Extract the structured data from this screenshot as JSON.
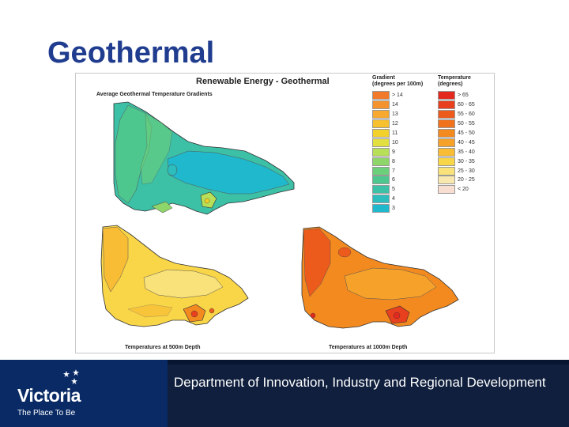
{
  "slide": {
    "title": "Geothermal"
  },
  "figure": {
    "title": "Renewable Energy - Geothermal",
    "map_gradient_label": "Average Geothermal Temperature Gradients",
    "map_500_label": "Temperatures at 500m Depth",
    "map_1000_label": "Temperatures at 1000m Depth",
    "gradient_legend": {
      "title": "Gradient",
      "unit": "(degrees per 100m)",
      "items": [
        {
          "label": "> 14",
          "color": "#f07a2a"
        },
        {
          "label": "14",
          "color": "#f4922e"
        },
        {
          "label": "13",
          "color": "#f6a830"
        },
        {
          "label": "12",
          "color": "#f7c02e"
        },
        {
          "label": "11",
          "color": "#f2d22a"
        },
        {
          "label": "10",
          "color": "#e2e040"
        },
        {
          "label": "9",
          "color": "#b8df58"
        },
        {
          "label": "8",
          "color": "#8ed66a"
        },
        {
          "label": "7",
          "color": "#6ccf7a"
        },
        {
          "label": "6",
          "color": "#4ec78e"
        },
        {
          "label": "5",
          "color": "#3cc0a6"
        },
        {
          "label": "4",
          "color": "#2ebdbd"
        },
        {
          "label": "3",
          "color": "#20b8cc"
        }
      ]
    },
    "temperature_legend": {
      "title": "Temperature",
      "unit": "(degrees)",
      "items": [
        {
          "label": "> 65",
          "color": "#e3281f"
        },
        {
          "label": "60 - 65",
          "color": "#e8401e"
        },
        {
          "label": "55 - 60",
          "color": "#ec5a1c"
        },
        {
          "label": "50 - 55",
          "color": "#f0721c"
        },
        {
          "label": "45 - 50",
          "color": "#f38a20"
        },
        {
          "label": "40 - 45",
          "color": "#f6a22a"
        },
        {
          "label": "35 - 40",
          "color": "#f8bd34"
        },
        {
          "label": "30 - 35",
          "color": "#f9d548"
        },
        {
          "label": "25 - 30",
          "color": "#f9e27a"
        },
        {
          "label": "20 - 25",
          "color": "#f8e8b0"
        },
        {
          "label": "< 20",
          "color": "#f7ded0"
        }
      ]
    }
  },
  "footer": {
    "logo_word": "Victoria",
    "logo_tagline": "The Place To Be",
    "department": "Department of Innovation, Industry and Regional Development"
  }
}
